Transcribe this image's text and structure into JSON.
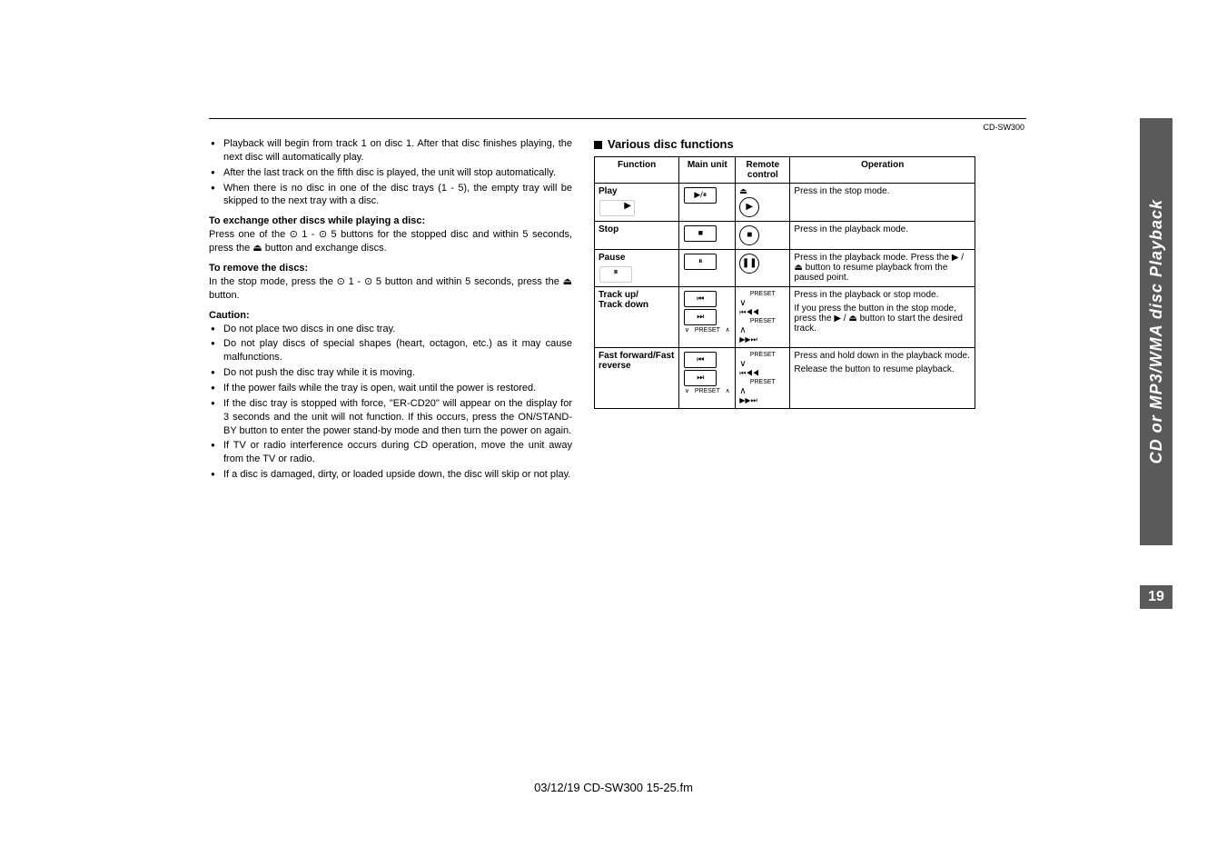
{
  "model": "CD-SW300",
  "left": {
    "top_bullets": [
      "Playback will begin from track 1 on disc 1. After that disc finishes playing, the next disc will automatically play.",
      "After the last track on the fifth disc is played, the unit will stop automatically.",
      "When there is no disc in one of the disc trays (1 - 5), the empty tray will be skipped to the next tray with a disc."
    ],
    "exchange_head": "To exchange other discs while playing a disc:",
    "exchange_body": "Press one of the ⊙ 1 - ⊙ 5 buttons for the stopped disc and within 5 seconds, press the ⏏ button and exchange discs.",
    "remove_head": "To remove the discs:",
    "remove_body": "In the stop mode, press the ⊙ 1 - ⊙ 5 button and within 5 seconds, press the ⏏ button.",
    "caution_head": "Caution:",
    "caution_bullets": [
      "Do not place two discs in one disc tray.",
      "Do not play discs of special shapes (heart, octagon, etc.) as it may cause malfunctions.",
      "Do not push the disc tray while it is moving.",
      "If the power fails while the tray is open, wait until the power is restored.",
      "If the disc tray is stopped with force, \"ER-CD20\" will appear on the display for 3 seconds and the unit will not function. If this occurs, press the ON/STAND-BY button to enter the power stand-by mode and then turn the power on again.",
      "If TV or radio interference occurs during CD operation, move the unit away from the TV or radio.",
      "If a disc is damaged, dirty, or loaded upside down, the disc will skip or not play."
    ]
  },
  "right": {
    "title": "Various disc functions",
    "headers": [
      "Function",
      "Main unit",
      "Remote control",
      "Operation"
    ],
    "rows": [
      {
        "func": "Play",
        "main_sym": "▶/⏸",
        "remote_top_sym": "⏏",
        "remote_circ": "▶",
        "op": "Press in the stop mode."
      },
      {
        "func": "Stop",
        "main_sym": "■",
        "remote_circ": "■",
        "op": "Press in the playback mode."
      },
      {
        "func": "Pause",
        "main_sym": "⏸",
        "remote_circ": "❚❚",
        "op": "Press in the playback mode. Press the ▶ / ⏏ button to resume playback from the paused point."
      },
      {
        "func": "Track up/\nTrack down",
        "main_pair": true,
        "remote_preset": true,
        "op1": "Press in the playback or stop mode.",
        "op2": "If you press the button in the stop mode, press the ▶ / ⏏ button to start the desired track."
      },
      {
        "func": "Fast forward/Fast reverse",
        "main_pair": true,
        "remote_preset": true,
        "op1": "Press and hold down in the playback mode.",
        "op2": "Release the button to resume playback."
      }
    ],
    "preset_label": "PRESET"
  },
  "side_tab": "CD or MP3/WMA disc Playback",
  "page_number": "19",
  "footer": "03/12/19    CD-SW300 15-25.fm"
}
